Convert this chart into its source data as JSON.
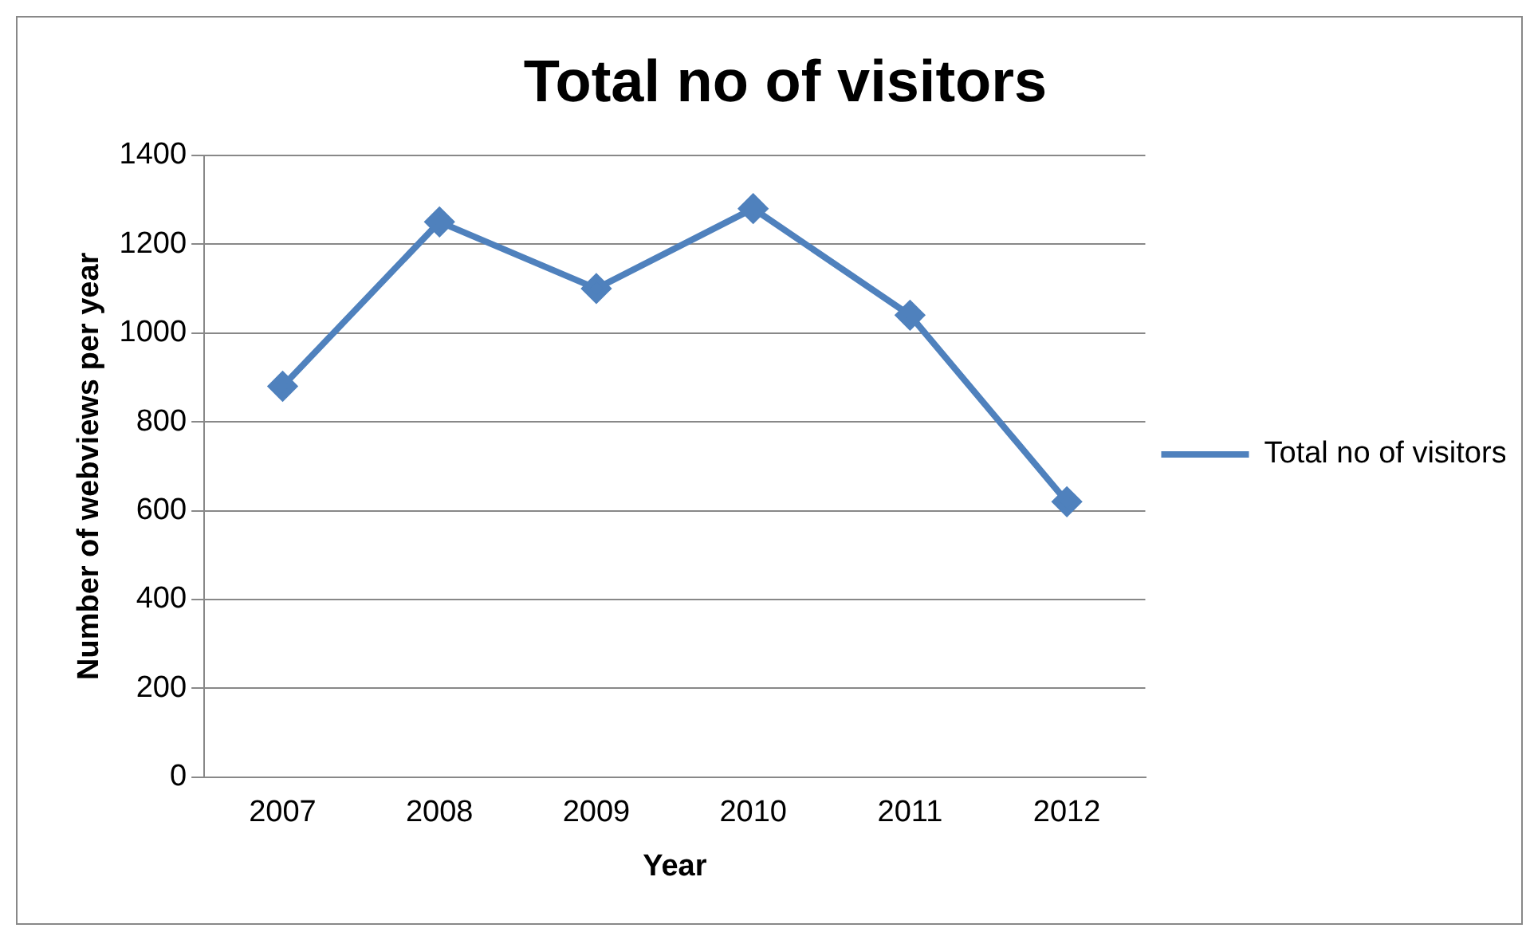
{
  "chart_data": {
    "type": "line",
    "title": "Total no of visitors",
    "xlabel": "Year",
    "ylabel": "Number of webviews per year",
    "categories": [
      "2007",
      "2008",
      "2009",
      "2010",
      "2011",
      "2012"
    ],
    "series": [
      {
        "name": "Total no of visitors",
        "color": "#4f81bd",
        "values": [
          880,
          1250,
          1100,
          1280,
          1040,
          620
        ]
      }
    ],
    "ylim": [
      0,
      1400
    ],
    "yticks": [
      0,
      200,
      400,
      600,
      800,
      1000,
      1200,
      1400
    ],
    "grid": "y",
    "legend": "right",
    "marker": "diamond",
    "line_style": "solid"
  }
}
